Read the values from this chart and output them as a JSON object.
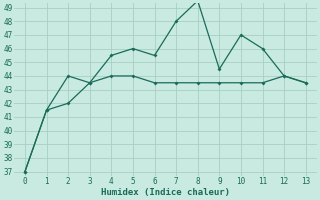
{
  "xlabel": "Humidex (Indice chaleur)",
  "x": [
    0,
    1,
    2,
    3,
    4,
    5,
    6,
    7,
    8,
    9,
    10,
    11,
    12,
    13
  ],
  "line1": [
    37,
    41.5,
    44,
    43.5,
    45.5,
    46,
    45.5,
    48,
    49.5,
    44.5,
    47,
    46,
    44,
    43.5
  ],
  "line2": [
    37,
    41.5,
    42,
    43.5,
    44,
    44,
    43.5,
    43.5,
    43.5,
    43.5,
    43.5,
    43.5,
    44,
    43.5
  ],
  "line_color": "#1a6b5a",
  "bg_color": "#c8eae0",
  "grid_color_major": "#a8cfc4",
  "grid_color_minor": "#b8ddd4",
  "ylim": [
    37,
    49
  ],
  "xlim": [
    -0.5,
    13.5
  ],
  "yticks": [
    37,
    38,
    39,
    40,
    41,
    42,
    43,
    44,
    45,
    46,
    47,
    48,
    49
  ],
  "xticks": [
    0,
    1,
    2,
    3,
    4,
    5,
    6,
    7,
    8,
    9,
    10,
    11,
    12,
    13
  ],
  "tick_fontsize": 5.5,
  "xlabel_fontsize": 6.5
}
